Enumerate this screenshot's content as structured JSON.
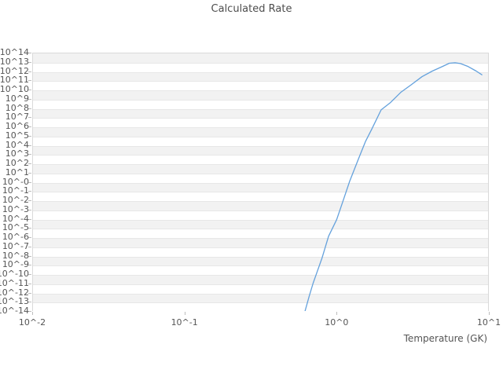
{
  "title": "Calculated Rate",
  "colors": {
    "line": "#64a1dc",
    "band_gray": "#f2f2f2",
    "band_white": "#ffffff",
    "gridline": "#e7e7e7",
    "plot_border": "#d9d9d9",
    "tick_mark": "#bdbdbd",
    "tick_text": "#555555",
    "title_text": "#4d4d4d"
  },
  "chart_data": {
    "type": "line",
    "title": "Calculated Rate",
    "xlabel": "Temperature (GK)",
    "ylabel": "",
    "x_scale": "log",
    "y_scale": "log",
    "xlim": [
      0.01,
      10
    ],
    "ylim": [
      1e-14,
      100000000000000.0
    ],
    "xlim_log10": [
      -2,
      1
    ],
    "ylim_log10": [
      -14,
      14
    ],
    "grid": "horizontal-bands-alternating",
    "legend": "none",
    "x_tick_labels": [
      "10^-2",
      "10^-1",
      "10^0",
      "10^1"
    ],
    "x_tick_log10": [
      -2,
      -1,
      0,
      1
    ],
    "y_tick_labels": [
      "10^14",
      "10^13",
      "10^12",
      "10^11",
      "10^10",
      "10^9",
      "10^8",
      "10^7",
      "10^6",
      "10^5",
      "10^4",
      "10^3",
      "10^2",
      "10^1",
      "10^-0",
      "10^-1",
      "10^-2",
      "10^-3",
      "10^-4",
      "10^-5",
      "10^-6",
      "10^-7",
      "10^-8",
      "10^-9",
      "10^-10",
      "10^-11",
      "10^-12",
      "10^-13",
      "10^-14"
    ],
    "y_tick_log10": [
      14,
      13,
      12,
      11,
      10,
      9,
      8,
      7,
      6,
      5,
      4,
      3,
      2,
      1,
      0,
      -1,
      -2,
      -3,
      -4,
      -5,
      -6,
      -7,
      -8,
      -9,
      -10,
      -11,
      -12,
      -13,
      -14
    ],
    "series": [
      {
        "name": "calculated-rate",
        "color": "#64a1dc",
        "points_T_log10rate": [
          [
            0.62,
            -14.0
          ],
          [
            0.66,
            -12.4
          ],
          [
            0.7,
            -11.0
          ],
          [
            0.75,
            -9.6
          ],
          [
            0.8,
            -8.3
          ],
          [
            0.885,
            -5.9
          ],
          [
            1.0,
            -4.1
          ],
          [
            1.1,
            -2.1
          ],
          [
            1.22,
            0.1
          ],
          [
            1.4,
            2.6
          ],
          [
            1.55,
            4.4
          ],
          [
            1.7,
            5.7
          ],
          [
            1.96,
            7.8
          ],
          [
            2.26,
            8.6
          ],
          [
            2.64,
            9.7
          ],
          [
            3.08,
            10.5
          ],
          [
            3.64,
            11.4
          ],
          [
            4.25,
            12.0
          ],
          [
            4.96,
            12.5
          ],
          [
            5.5,
            12.85
          ],
          [
            6.0,
            12.9
          ],
          [
            6.5,
            12.82
          ],
          [
            7.3,
            12.5
          ],
          [
            8.26,
            12.0
          ],
          [
            9.0,
            11.6
          ]
        ]
      }
    ]
  }
}
